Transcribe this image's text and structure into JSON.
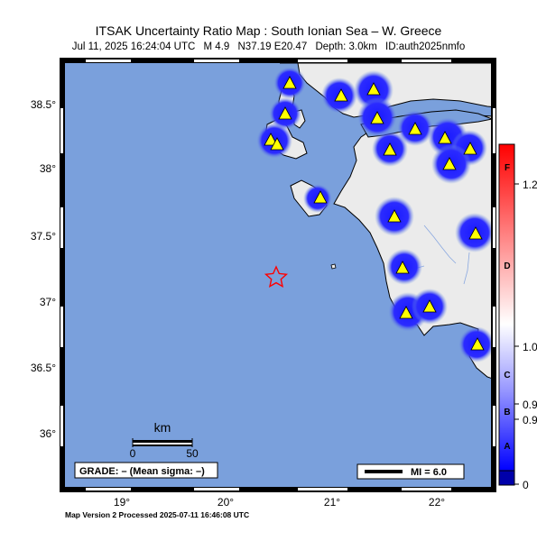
{
  "title": "ITSAK Uncertainty Ratio Map : South Ionian Sea – W. Greece",
  "subtitle": {
    "datetime": "Jul 11, 2025 16:24:04 UTC",
    "magnitude": "M 4.9",
    "location": "N37.19 E20.47",
    "depth": "Depth: 3.0km",
    "event_id": "ID:auth2025nmfo"
  },
  "axes": {
    "lat_ticks": [
      "38.5°",
      "38°",
      "37.5°",
      "37°",
      "36.5°",
      "36°"
    ],
    "lon_ticks": [
      "19°",
      "20°",
      "21°",
      "22°"
    ]
  },
  "scale_bar": {
    "unit": "km",
    "labels": [
      "0",
      "50"
    ]
  },
  "grade_box": "GRADE: – (Mean sigma: –)",
  "mi_legend": "MI = 6.0",
  "colorbar": {
    "ratio_labels": [
      "1.2",
      "1.0",
      "0.9",
      "0.9",
      "0"
    ],
    "grade_letters": [
      "F",
      "D",
      "C",
      "B",
      "A"
    ],
    "colors": {
      "top": "#ff0000",
      "middle": "#ffffff",
      "bottom": "#0000ff",
      "deep": "#0000aa"
    }
  },
  "map_colors": {
    "sea": "#7aa0dc",
    "land": "#ebebeb",
    "stations": "#ffff00",
    "station_halo": "#1a1aff",
    "epicenter": "#ff0000"
  },
  "footer": "Map Version 2 Processed 2025-07-11 16:46:08 UTC"
}
